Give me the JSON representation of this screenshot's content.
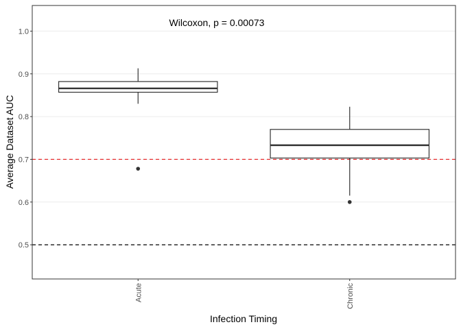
{
  "chart_data": {
    "type": "boxplot",
    "xlabel": "Infection Timing",
    "ylabel": "Average Dataset AUC",
    "ylim": [
      0.42,
      1.06
    ],
    "yticks": [
      0.5,
      0.6,
      0.7,
      0.8,
      0.9,
      1.0
    ],
    "ytick_labels": [
      "0.5",
      "0.6",
      "0.7",
      "0.8",
      "0.9",
      "1.0"
    ],
    "grid": "horizontal-major",
    "categories": [
      "Acute",
      "Chronic"
    ],
    "boxes": [
      {
        "category": "Acute",
        "whisker_low": 0.83,
        "q1": 0.857,
        "median": 0.866,
        "q3": 0.882,
        "whisker_high": 0.913,
        "outliers": [
          0.678
        ]
      },
      {
        "category": "Chronic",
        "whisker_low": 0.615,
        "q1": 0.703,
        "median": 0.733,
        "q3": 0.77,
        "whisker_high": 0.823,
        "outliers": [
          0.6
        ]
      }
    ],
    "reference_lines": [
      {
        "y": 0.7,
        "color": "#e41a1c",
        "style": "dashed"
      },
      {
        "y": 0.5,
        "color": "#000000",
        "style": "dashed"
      }
    ],
    "annotation": "Wilcoxon, p = 0.00073"
  }
}
